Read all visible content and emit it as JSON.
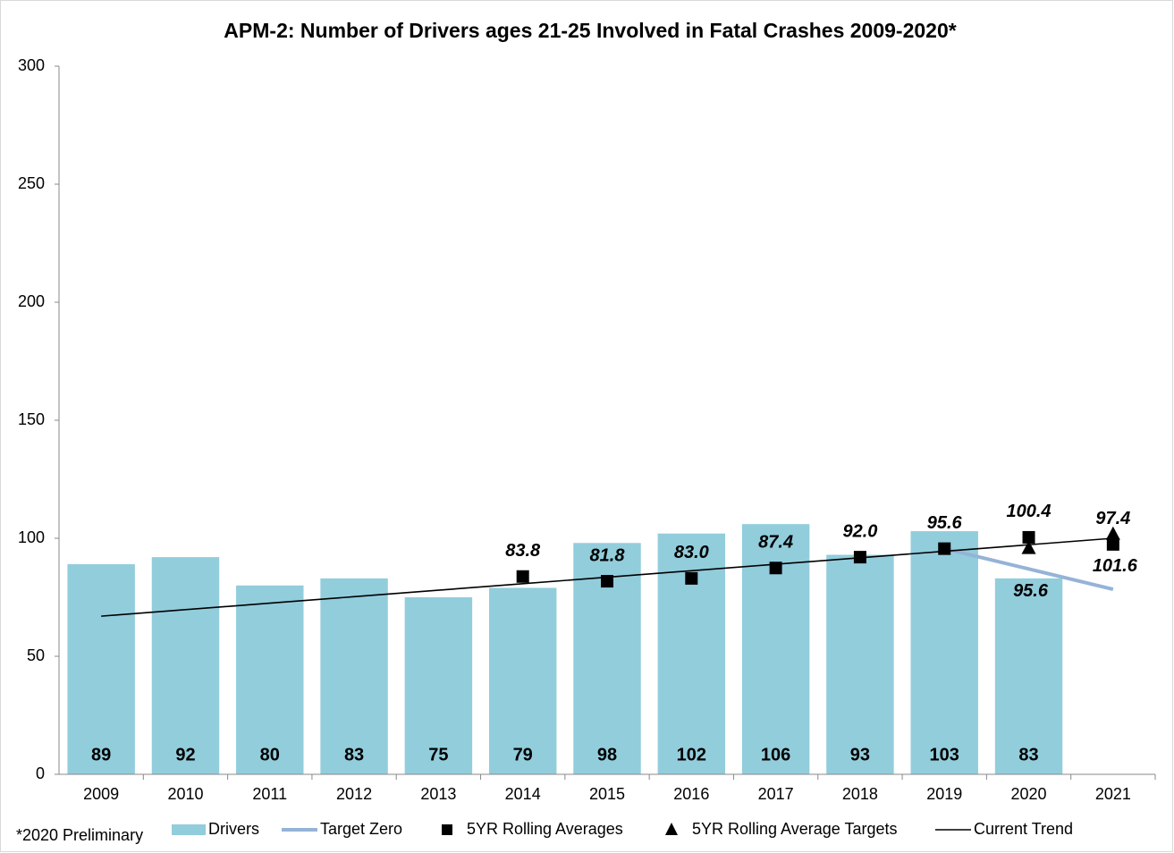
{
  "chart_data": {
    "type": "bar",
    "title": "APM-2: Number of Drivers ages 21-25 Involved in Fatal Crashes 2009-2020*",
    "footnote": "*2020 Preliminary",
    "categories": [
      "2009",
      "2010",
      "2011",
      "2012",
      "2013",
      "2014",
      "2015",
      "2016",
      "2017",
      "2018",
      "2019",
      "2020",
      "2021"
    ],
    "ylim": [
      0,
      300
    ],
    "yticks": [
      0,
      50,
      100,
      150,
      200,
      250,
      300
    ],
    "grid": false,
    "legend": "bottom",
    "series": [
      {
        "name": "Drivers",
        "type": "bar",
        "color": "#92cddc",
        "values": [
          89,
          92,
          80,
          83,
          75,
          79,
          98,
          102,
          106,
          93,
          103,
          83,
          null
        ]
      },
      {
        "name": "Target Zero",
        "type": "line",
        "color": "#95b3d7",
        "values": [
          null,
          null,
          null,
          null,
          null,
          null,
          null,
          null,
          null,
          null,
          95.6,
          87,
          78.4
        ]
      },
      {
        "name": "5YR Rolling Averages",
        "type": "scatter",
        "marker": "square",
        "color": "#000000",
        "values": [
          null,
          null,
          null,
          null,
          null,
          83.8,
          81.8,
          83.0,
          87.4,
          92.0,
          95.6,
          100.4,
          97.4
        ],
        "value_labels": [
          null,
          null,
          null,
          null,
          null,
          "83.8",
          "81.8",
          "83.0",
          "87.4",
          "92.0",
          "95.6",
          "100.4",
          "97.4"
        ]
      },
      {
        "name": "5YR Rolling Average Targets",
        "type": "scatter",
        "marker": "triangle",
        "color": "#000000",
        "values": [
          null,
          null,
          null,
          null,
          null,
          null,
          null,
          null,
          null,
          null,
          null,
          95.6,
          101.6
        ]
      },
      {
        "name": "Current Trend",
        "type": "line",
        "color": "#000000",
        "values": [
          67,
          69.75,
          72.5,
          75.25,
          78,
          80.75,
          83.5,
          86.25,
          89,
          91.75,
          94.5,
          97.25,
          100
        ]
      }
    ]
  }
}
